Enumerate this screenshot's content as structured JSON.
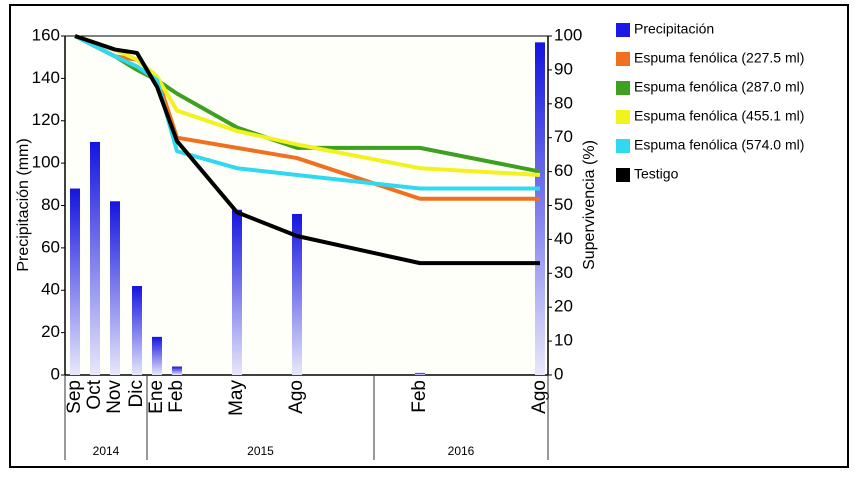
{
  "chart_data": {
    "type": "bar-line",
    "ylabel": "Precipitación (mm)",
    "y2label": "Supervivencia (%)",
    "groups": [
      {
        "label": "2014",
        "categories": [
          "Sep",
          "Oct",
          "Nov",
          "Dic"
        ]
      },
      {
        "label": "2015",
        "categories": [
          "Ene",
          "Feb",
          "May",
          "Ago"
        ]
      },
      {
        "label": "2016",
        "categories": [
          "Feb",
          "Ago"
        ]
      }
    ],
    "ylim": [
      0,
      160
    ],
    "yticks": [
      0,
      20,
      40,
      60,
      80,
      100,
      120,
      140,
      160
    ],
    "y2lim": [
      0,
      100
    ],
    "y2ticks": [
      0,
      10,
      20,
      30,
      40,
      50,
      60,
      70,
      80,
      90,
      100
    ],
    "series": [
      {
        "name": "Precipitación",
        "type": "bar",
        "color": "#1a1ae6",
        "values": [
          88,
          110,
          82,
          42,
          18,
          4,
          78,
          76,
          1,
          157
        ]
      },
      {
        "name": "Espuma fenólica  (227.5 ml)",
        "type": "line",
        "axis": "y2",
        "color": "#f07020",
        "values": [
          100,
          97,
          94,
          93,
          88,
          70,
          67,
          64,
          52,
          52
        ]
      },
      {
        "name": "Espuma fenólica (287.0 ml)",
        "type": "line",
        "axis": "y2",
        "color": "#3ea020",
        "values": [
          100,
          97,
          94,
          90,
          87,
          83,
          73,
          67,
          67,
          60
        ]
      },
      {
        "name": "Espuma fenólica (455.1 ml)",
        "type": "line",
        "axis": "y2",
        "color": "#f2f21e",
        "values": [
          100,
          98,
          96,
          93,
          88,
          78,
          72,
          68,
          61,
          59
        ]
      },
      {
        "name": "Espuma fenólica (574.0 ml)",
        "type": "line",
        "axis": "y2",
        "color": "#30d8f0",
        "values": [
          100,
          97,
          94,
          91,
          87,
          66,
          61,
          59,
          55,
          55
        ]
      },
      {
        "name": "Testigo",
        "type": "line",
        "axis": "y2",
        "color": "#000000",
        "values": [
          100,
          98,
          96,
          95,
          85,
          69,
          48,
          41,
          33,
          33
        ]
      }
    ]
  }
}
